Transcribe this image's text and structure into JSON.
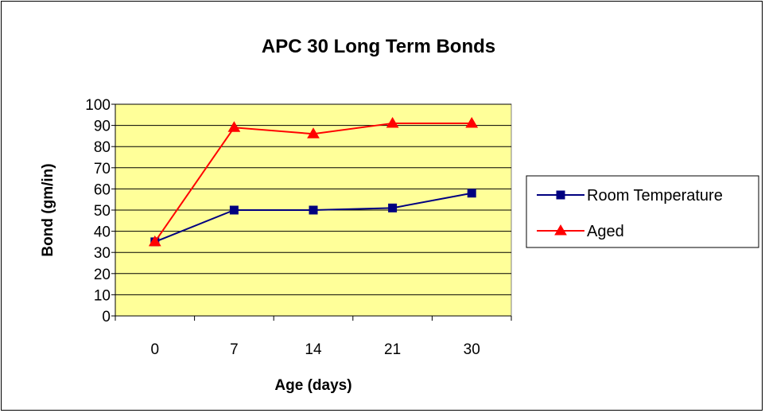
{
  "chart_data": {
    "type": "line",
    "title": "APC 30 Long Term Bonds",
    "xlabel": "Age (days)",
    "ylabel": "Bond (gm/in)",
    "categories": [
      "0",
      "7",
      "14",
      "21",
      "30"
    ],
    "ylim": [
      0,
      100
    ],
    "yticks": [
      "0",
      "10",
      "20",
      "30",
      "40",
      "50",
      "60",
      "70",
      "80",
      "90",
      "100"
    ],
    "grid": true,
    "legend_position": "right",
    "plot_background": "#FFFF99",
    "series": [
      {
        "name": "Room Temperature",
        "values": [
          35,
          50,
          50,
          51,
          58
        ],
        "color": "#000080",
        "marker": "square"
      },
      {
        "name": "Aged",
        "values": [
          35,
          89,
          86,
          91,
          91
        ],
        "color": "#FF0000",
        "marker": "triangle"
      }
    ]
  }
}
